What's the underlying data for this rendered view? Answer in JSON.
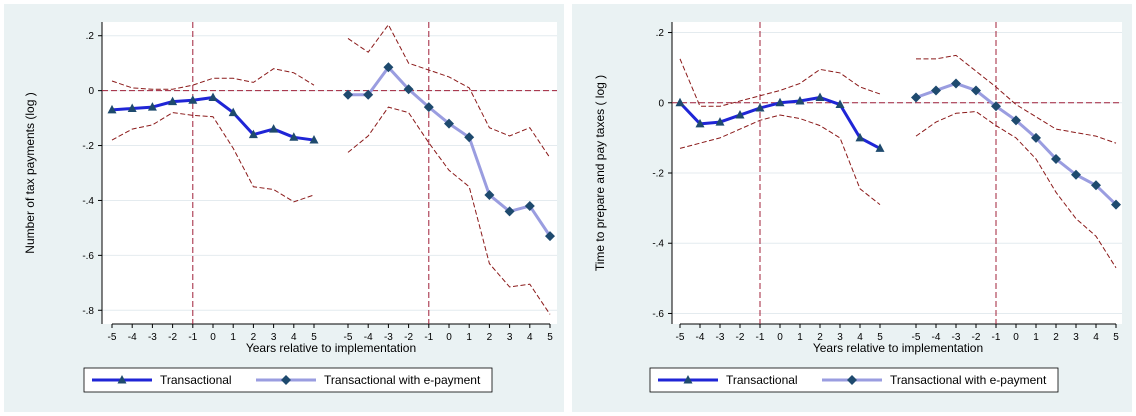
{
  "chart_data": [
    {
      "type": "line",
      "title": "",
      "xlabel": "Years relative to implementation",
      "ylabel": "Number of tax payments (log )",
      "ylim": [
        -0.85,
        0.25
      ],
      "y_ticks": [
        -0.8,
        -0.6,
        -0.4,
        -0.2,
        0,
        0.2
      ],
      "y_tick_labels": [
        "-.8",
        "-.6",
        "-.4",
        "-.2",
        "0",
        ".2"
      ],
      "x_ticks": [
        -5,
        -4,
        -3,
        -2,
        -1,
        0,
        1,
        2,
        3,
        4,
        5
      ],
      "x_tick_labels": [
        "-5",
        "-4",
        "-3",
        "-2",
        "-1",
        "0",
        "1",
        "2",
        "3",
        "4",
        "5"
      ],
      "grid": true,
      "legend": "bottom",
      "reference_lines": {
        "x": -1,
        "y": 0
      },
      "groups": [
        {
          "series": "Transactional",
          "x": [
            -5,
            -4,
            -3,
            -2,
            -1,
            0,
            1,
            2,
            3,
            4,
            5
          ],
          "values": [
            -0.07,
            -0.065,
            -0.06,
            -0.04,
            -0.035,
            -0.025,
            -0.08,
            -0.16,
            -0.14,
            -0.17,
            -0.18
          ],
          "ci_upper": [
            0.035,
            0.01,
            0.005,
            0.005,
            0.02,
            0.045,
            0.045,
            0.03,
            0.08,
            0.065,
            0.02
          ],
          "ci_lower": [
            -0.18,
            -0.14,
            -0.125,
            -0.08,
            -0.09,
            -0.095,
            -0.21,
            -0.35,
            -0.36,
            -0.405,
            -0.38
          ]
        },
        {
          "series": "Transactional with e-payment",
          "x": [
            -5,
            -4,
            -3,
            -2,
            -1,
            0,
            1,
            2,
            3,
            4,
            5
          ],
          "values": [
            -0.015,
            -0.015,
            0.085,
            0.005,
            -0.06,
            -0.12,
            -0.17,
            -0.38,
            -0.44,
            -0.42,
            -0.53
          ],
          "ci_upper": [
            0.19,
            0.14,
            0.24,
            0.1,
            0.075,
            0.05,
            0.01,
            -0.135,
            -0.165,
            -0.135,
            -0.245
          ],
          "ci_lower": [
            -0.225,
            -0.165,
            -0.06,
            -0.08,
            -0.19,
            -0.29,
            -0.35,
            -0.63,
            -0.715,
            -0.705,
            -0.815
          ]
        }
      ]
    },
    {
      "type": "line",
      "title": "",
      "xlabel": "Years relative to implementation",
      "ylabel": "Time to prepare and pay taxes ( log )",
      "ylim": [
        -0.63,
        0.23
      ],
      "y_ticks": [
        -0.6,
        -0.4,
        -0.2,
        0,
        0.2
      ],
      "y_tick_labels": [
        "-.6",
        "-.4",
        "-.2",
        "0",
        ".2"
      ],
      "x_ticks": [
        -5,
        -4,
        -3,
        -2,
        -1,
        0,
        1,
        2,
        3,
        4,
        5
      ],
      "x_tick_labels": [
        "-5",
        "-4",
        "-3",
        "-2",
        "-1",
        "0",
        "1",
        "2",
        "3",
        "4",
        "5"
      ],
      "grid": true,
      "legend": "bottom",
      "reference_lines": {
        "x": -1,
        "y": 0
      },
      "groups": [
        {
          "series": "Transactional",
          "x": [
            -5,
            -4,
            -3,
            -2,
            -1,
            0,
            1,
            2,
            3,
            4,
            5
          ],
          "values": [
            0.0,
            -0.06,
            -0.055,
            -0.035,
            -0.015,
            0.0,
            0.005,
            0.015,
            -0.005,
            -0.1,
            -0.13
          ],
          "ci_upper": [
            0.125,
            -0.01,
            -0.01,
            0.005,
            0.02,
            0.035,
            0.055,
            0.095,
            0.085,
            0.045,
            0.025
          ],
          "ci_lower": [
            -0.13,
            -0.115,
            -0.1,
            -0.075,
            -0.05,
            -0.035,
            -0.045,
            -0.065,
            -0.1,
            -0.245,
            -0.29
          ]
        },
        {
          "series": "Transactional with e-payment",
          "x": [
            -5,
            -4,
            -3,
            -2,
            -1,
            0,
            1,
            2,
            3,
            4,
            5
          ],
          "values": [
            0.015,
            0.035,
            0.055,
            0.035,
            -0.01,
            -0.05,
            -0.1,
            -0.16,
            -0.205,
            -0.235,
            -0.29
          ],
          "ci_upper": [
            0.125,
            0.125,
            0.135,
            0.09,
            0.045,
            -0.005,
            -0.04,
            -0.075,
            -0.085,
            -0.095,
            -0.115
          ],
          "ci_lower": [
            -0.095,
            -0.055,
            -0.03,
            -0.025,
            -0.065,
            -0.1,
            -0.16,
            -0.255,
            -0.33,
            -0.38,
            -0.47
          ]
        }
      ]
    }
  ],
  "legend": {
    "items": [
      {
        "label": "Transactional",
        "color": "#1f25d6",
        "marker": "triangle"
      },
      {
        "label": "Transactional with e-payment",
        "color": "#9a9de0",
        "marker": "diamond"
      }
    ]
  },
  "colors": {
    "transactional": "#1f25d6",
    "epayment": "#9a9de0",
    "marker": "#1e4a6e",
    "ci": "#8b1a1a",
    "reference": "#a0203a",
    "grid": "#e4ebef",
    "panel_bg": "#eaf2f3"
  }
}
